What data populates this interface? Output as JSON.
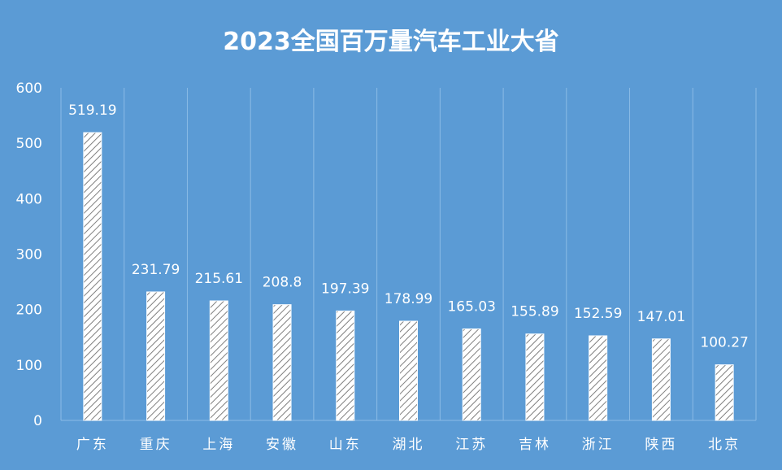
{
  "chart_data": {
    "type": "bar",
    "title": "2023全国百万量汽车工业大省",
    "xlabel": "",
    "ylabel": "",
    "ylim": [
      0,
      600
    ],
    "yticks": [
      0,
      100,
      200,
      300,
      400,
      500,
      600
    ],
    "grid": "vertical",
    "legend": "none",
    "categories": [
      "广东",
      "重庆",
      "上海",
      "安徽",
      "山东",
      "湖北",
      "江苏",
      "吉林",
      "浙江",
      "陕西",
      "北京"
    ],
    "values": [
      519.19,
      231.79,
      215.61,
      208.8,
      197.39,
      178.99,
      165.03,
      155.89,
      152.59,
      147.01,
      100.27
    ],
    "data_labels": [
      "519.19",
      "231.79",
      "215.61",
      "208.8",
      "197.39",
      "178.99",
      "165.03",
      "155.89",
      "152.59",
      "147.01",
      "100.27"
    ]
  },
  "colors": {
    "background": "#5b9bd5",
    "bar_fill": "#ffffff",
    "bar_hatch": "#7f7f7f",
    "text": "#ffffff",
    "gridline": "#8bbbe6"
  }
}
